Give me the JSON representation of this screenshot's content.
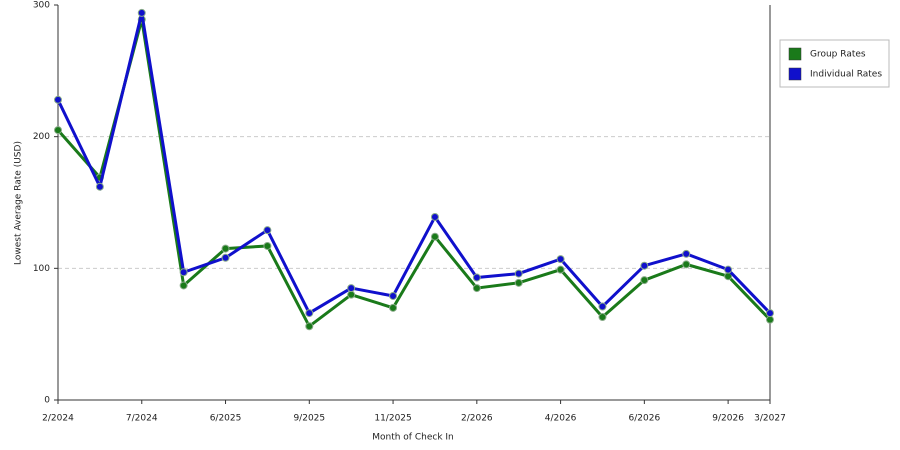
{
  "chart_data": {
    "type": "line",
    "x_label": "Month of Check In",
    "y_label": "Lowest Average Rate (USD)",
    "categories": [
      "2/2024",
      null,
      "7/2024",
      null,
      "6/2025",
      null,
      "9/2025",
      null,
      "11/2025",
      null,
      "2/2026",
      null,
      "4/2026",
      null,
      "6/2026",
      null,
      "9/2026",
      "3/2027"
    ],
    "series": [
      {
        "name": "Group Rates",
        "color": "#1a7a1a",
        "values": [
          205,
          169,
          289,
          87,
          115,
          117,
          56,
          80,
          70,
          124,
          85,
          89,
          99,
          63,
          91,
          103,
          94,
          61
        ]
      },
      {
        "name": "Individual Rates",
        "color": "#1010cc",
        "values": [
          228,
          162,
          294,
          97,
          108,
          129,
          66,
          85,
          79,
          139,
          93,
          96,
          107,
          71,
          102,
          111,
          99,
          66
        ]
      }
    ],
    "ylim": [
      0,
      300
    ],
    "yticks": [
      0,
      100,
      200,
      300
    ],
    "grid": true,
    "legend": "right"
  }
}
